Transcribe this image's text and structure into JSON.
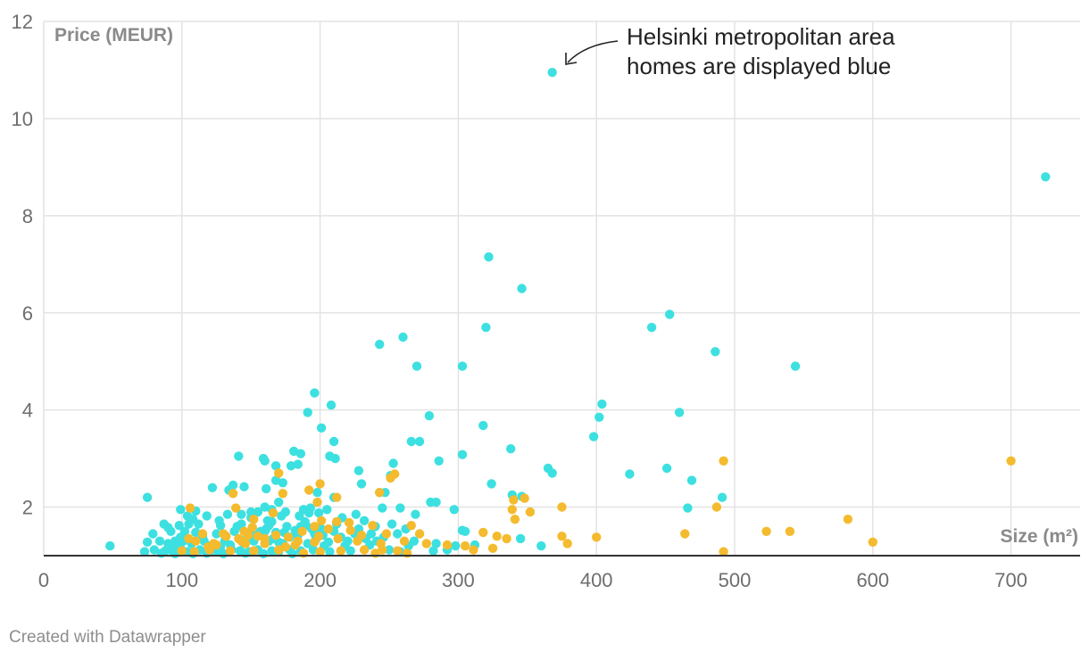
{
  "footer": {
    "credit": "Created with Datawrapper"
  },
  "colors": {
    "helsinki": "#3de0e0",
    "other": "#f4bb2e",
    "grid": "#e3e3e3",
    "axis": "#333333",
    "tick": "#6e6e6e"
  },
  "chart_data": {
    "type": "scatter",
    "title": "",
    "xlabel": "Size (m²)",
    "ylabel": "Price (MEUR)",
    "xlim": [
      0,
      750
    ],
    "ylim": [
      1,
      12
    ],
    "x_ticks": [
      0,
      100,
      200,
      300,
      400,
      500,
      600,
      700
    ],
    "y_ticks": [
      2,
      4,
      6,
      8,
      10,
      12
    ],
    "grid": true,
    "legend": "none",
    "annotation": {
      "lines": [
        "Helsinki metropolitan area",
        "homes are displayed blue"
      ],
      "points_to": [
        368,
        10.95
      ]
    },
    "series": [
      {
        "color": "#3de0e0",
        "points": [
          [
            368,
            10.95
          ],
          [
            725,
            8.8
          ],
          [
            322,
            7.15
          ],
          [
            346,
            6.5
          ],
          [
            453,
            5.97
          ],
          [
            440,
            5.7
          ],
          [
            320,
            5.7
          ],
          [
            260,
            5.5
          ],
          [
            243,
            5.35
          ],
          [
            486,
            5.2
          ],
          [
            544,
            4.9
          ],
          [
            270,
            4.9
          ],
          [
            303,
            4.9
          ],
          [
            196,
            4.35
          ],
          [
            208,
            4.1
          ],
          [
            404,
            4.12
          ],
          [
            460,
            3.95
          ],
          [
            191,
            3.95
          ],
          [
            279,
            3.88
          ],
          [
            402,
            3.85
          ],
          [
            318,
            3.68
          ],
          [
            201,
            3.63
          ],
          [
            398,
            3.45
          ],
          [
            266,
            3.35
          ],
          [
            272,
            3.35
          ],
          [
            210,
            3.35
          ],
          [
            338,
            3.2
          ],
          [
            181,
            3.15
          ],
          [
            186,
            3.1
          ],
          [
            303,
            3.08
          ],
          [
            141,
            3.05
          ],
          [
            207,
            3.05
          ],
          [
            211,
            3.0
          ],
          [
            159,
            3.0
          ],
          [
            160,
            2.95
          ],
          [
            286,
            2.95
          ],
          [
            253,
            2.9
          ],
          [
            184,
            2.88
          ],
          [
            168,
            2.85
          ],
          [
            179,
            2.85
          ],
          [
            365,
            2.8
          ],
          [
            451,
            2.8
          ],
          [
            228,
            2.75
          ],
          [
            368,
            2.7
          ],
          [
            424,
            2.68
          ],
          [
            251,
            2.65
          ],
          [
            168,
            2.55
          ],
          [
            173,
            2.5
          ],
          [
            469,
            2.55
          ],
          [
            324,
            2.48
          ],
          [
            230,
            2.48
          ],
          [
            137,
            2.45
          ],
          [
            145,
            2.42
          ],
          [
            161,
            2.38
          ],
          [
            122,
            2.4
          ],
          [
            134,
            2.35
          ],
          [
            198,
            2.3
          ],
          [
            243,
            2.3
          ],
          [
            339,
            2.25
          ],
          [
            346,
            2.22
          ],
          [
            75,
            2.2
          ],
          [
            491,
            2.2
          ],
          [
            210,
            2.2
          ],
          [
            247,
            2.3
          ],
          [
            280,
            2.1
          ],
          [
            284,
            2.1
          ],
          [
            170,
            2.1
          ],
          [
            160,
            2.0
          ],
          [
            466,
            1.98
          ],
          [
            297,
            1.95
          ],
          [
            193,
            1.98
          ],
          [
            99,
            1.95
          ],
          [
            110,
            1.92
          ],
          [
            150,
            1.9
          ],
          [
            175,
            1.9
          ],
          [
            188,
            1.95
          ],
          [
            199,
            1.88
          ],
          [
            205,
            1.95
          ],
          [
            226,
            1.85
          ],
          [
            245,
            1.98
          ],
          [
            258,
            1.98
          ],
          [
            269,
            1.85
          ],
          [
            143,
            1.85
          ],
          [
            118,
            1.82
          ],
          [
            104,
            1.82
          ],
          [
            216,
            1.78
          ],
          [
            232,
            1.72
          ],
          [
            165,
            1.7
          ],
          [
            189,
            1.7
          ],
          [
            87,
            1.65
          ],
          [
            98,
            1.62
          ],
          [
            112,
            1.65
          ],
          [
            128,
            1.62
          ],
          [
            140,
            1.6
          ],
          [
            151,
            1.58
          ],
          [
            176,
            1.6
          ],
          [
            186,
            1.6
          ],
          [
            240,
            1.6
          ],
          [
            92,
            1.5
          ],
          [
            79,
            1.45
          ],
          [
            102,
            1.5
          ],
          [
            125,
            1.45
          ],
          [
            138,
            1.5
          ],
          [
            157,
            1.5
          ],
          [
            168,
            1.48
          ],
          [
            196,
            1.45
          ],
          [
            210,
            1.5
          ],
          [
            225,
            1.45
          ],
          [
            256,
            1.45
          ],
          [
            303,
            1.52
          ],
          [
            305,
            1.5
          ],
          [
            84,
            1.3
          ],
          [
            90,
            1.25
          ],
          [
            96,
            1.2
          ],
          [
            101,
            1.3
          ],
          [
            107,
            1.25
          ],
          [
            116,
            1.3
          ],
          [
            131,
            1.3
          ],
          [
            145,
            1.25
          ],
          [
            152,
            1.3
          ],
          [
            163,
            1.3
          ],
          [
            173,
            1.25
          ],
          [
            191,
            1.25
          ],
          [
            203,
            1.2
          ],
          [
            218,
            1.2
          ],
          [
            236,
            1.22
          ],
          [
            264,
            1.2
          ],
          [
            284,
            1.25
          ],
          [
            298,
            1.2
          ],
          [
            312,
            1.22
          ],
          [
            345,
            1.35
          ],
          [
            360,
            1.2
          ],
          [
            48,
            1.2
          ],
          [
            75,
            1.28
          ],
          [
            268,
            1.3
          ],
          [
            80,
            1.12
          ],
          [
            88,
            1.1
          ],
          [
            93,
            1.1
          ],
          [
            99,
            1.15
          ],
          [
            104,
            1.08
          ],
          [
            113,
            1.12
          ],
          [
            121,
            1.1
          ],
          [
            126,
            1.08
          ],
          [
            136,
            1.12
          ],
          [
            142,
            1.1
          ],
          [
            149,
            1.08
          ],
          [
            155,
            1.12
          ],
          [
            165,
            1.1
          ],
          [
            170,
            1.08
          ],
          [
            178,
            1.12
          ],
          [
            186,
            1.1
          ],
          [
            195,
            1.12
          ],
          [
            207,
            1.08
          ],
          [
            222,
            1.1
          ],
          [
            250,
            1.12
          ],
          [
            258,
            1.08
          ],
          [
            282,
            1.1
          ],
          [
            292,
            1.12
          ],
          [
            85,
            1.05
          ],
          [
            95,
            1.04
          ],
          [
            108,
            1.04
          ],
          [
            118,
            1.05
          ],
          [
            130,
            1.04
          ],
          [
            146,
            1.05
          ],
          [
            159,
            1.04
          ],
          [
            180,
            1.04
          ],
          [
            73,
            1.08
          ],
          [
            99,
            1.38
          ],
          [
            115,
            1.38
          ],
          [
            120,
            1.2
          ],
          [
            128,
            1.18
          ],
          [
            135,
            1.22
          ],
          [
            147,
            1.35
          ],
          [
            153,
            1.42
          ],
          [
            158,
            1.45
          ],
          [
            161,
            1.55
          ],
          [
            163,
            1.62
          ],
          [
            162,
            1.72
          ],
          [
            160,
            1.5
          ],
          [
            166,
            1.35
          ],
          [
            170,
            1.28
          ],
          [
            174,
            1.48
          ],
          [
            178,
            1.38
          ],
          [
            182,
            1.52
          ],
          [
            184,
            1.42
          ],
          [
            190,
            1.62
          ],
          [
            194,
            1.55
          ],
          [
            197,
            1.35
          ],
          [
            200,
            1.58
          ],
          [
            202,
            1.42
          ],
          [
            206,
            1.28
          ],
          [
            212,
            1.65
          ],
          [
            215,
            1.38
          ],
          [
            220,
            1.3
          ],
          [
            228,
            1.55
          ],
          [
            233,
            1.35
          ],
          [
            237,
            1.45
          ],
          [
            241,
            1.3
          ],
          [
            246,
            1.38
          ],
          [
            252,
            1.65
          ],
          [
            262,
            1.55
          ],
          [
            90,
            1.58
          ],
          [
            95,
            1.3
          ],
          [
            105,
            1.65
          ],
          [
            110,
            1.48
          ],
          [
            127,
            1.72
          ],
          [
            133,
            1.85
          ],
          [
            143,
            1.65
          ],
          [
            150,
            1.78
          ],
          [
            155,
            1.9
          ],
          [
            165,
            1.95
          ],
          [
            172,
            1.82
          ],
          [
            185,
            1.82
          ],
          [
            192,
            1.88
          ],
          [
            108,
            1.75
          ]
        ]
      },
      {
        "color": "#f4bb2e",
        "points": [
          [
            700,
            2.95
          ],
          [
            492,
            2.95
          ],
          [
            170,
            2.7
          ],
          [
            251,
            2.6
          ],
          [
            254,
            2.68
          ],
          [
            200,
            2.48
          ],
          [
            192,
            2.35
          ],
          [
            137,
            2.28
          ],
          [
            243,
            2.3
          ],
          [
            173,
            2.28
          ],
          [
            348,
            2.18
          ],
          [
            212,
            2.2
          ],
          [
            340,
            2.15
          ],
          [
            198,
            2.1
          ],
          [
            375,
            2.0
          ],
          [
            487,
            2.0
          ],
          [
            106,
            1.98
          ],
          [
            139,
            1.98
          ],
          [
            339,
            1.95
          ],
          [
            352,
            1.9
          ],
          [
            166,
            1.88
          ],
          [
            152,
            1.75
          ],
          [
            212,
            1.7
          ],
          [
            341,
            1.75
          ],
          [
            582,
            1.75
          ],
          [
            201,
            1.72
          ],
          [
            221,
            1.68
          ],
          [
            238,
            1.62
          ],
          [
            266,
            1.62
          ],
          [
            151,
            1.58
          ],
          [
            196,
            1.6
          ],
          [
            222,
            1.52
          ],
          [
            187,
            1.5
          ],
          [
            206,
            1.55
          ],
          [
            145,
            1.5
          ],
          [
            115,
            1.45
          ],
          [
            132,
            1.4
          ],
          [
            148,
            1.42
          ],
          [
            160,
            1.35
          ],
          [
            177,
            1.38
          ],
          [
            199,
            1.4
          ],
          [
            230,
            1.42
          ],
          [
            248,
            1.45
          ],
          [
            272,
            1.45
          ],
          [
            318,
            1.48
          ],
          [
            328,
            1.4
          ],
          [
            335,
            1.35
          ],
          [
            379,
            1.25
          ],
          [
            464,
            1.45
          ],
          [
            523,
            1.5
          ],
          [
            540,
            1.5
          ],
          [
            375,
            1.4
          ],
          [
            400,
            1.38
          ],
          [
            600,
            1.28
          ],
          [
            105,
            1.35
          ],
          [
            110,
            1.3
          ],
          [
            123,
            1.25
          ],
          [
            130,
            1.45
          ],
          [
            143,
            1.3
          ],
          [
            160,
            1.25
          ],
          [
            168,
            1.42
          ],
          [
            184,
            1.3
          ],
          [
            196,
            1.28
          ],
          [
            213,
            1.35
          ],
          [
            227,
            1.3
          ],
          [
            244,
            1.25
          ],
          [
            261,
            1.3
          ],
          [
            277,
            1.25
          ],
          [
            292,
            1.22
          ],
          [
            305,
            1.2
          ],
          [
            325,
            1.15
          ],
          [
            311,
            1.12
          ],
          [
            492,
            1.08
          ],
          [
            100,
            1.1
          ],
          [
            109,
            1.08
          ],
          [
            120,
            1.12
          ],
          [
            135,
            1.1
          ],
          [
            152,
            1.1
          ],
          [
            170,
            1.12
          ],
          [
            188,
            1.05
          ],
          [
            200,
            1.08
          ],
          [
            215,
            1.1
          ],
          [
            232,
            1.12
          ],
          [
            245,
            1.12
          ],
          [
            256,
            1.1
          ],
          [
            263,
            1.05
          ],
          [
            240,
            1.05
          ],
          [
            119,
            1.18
          ],
          [
            125,
            1.22
          ],
          [
            141,
            1.35
          ],
          [
            146,
            1.25
          ],
          [
            155,
            1.4
          ],
          [
            175,
            1.18
          ],
          [
            182,
            1.22
          ]
        ]
      }
    ]
  }
}
